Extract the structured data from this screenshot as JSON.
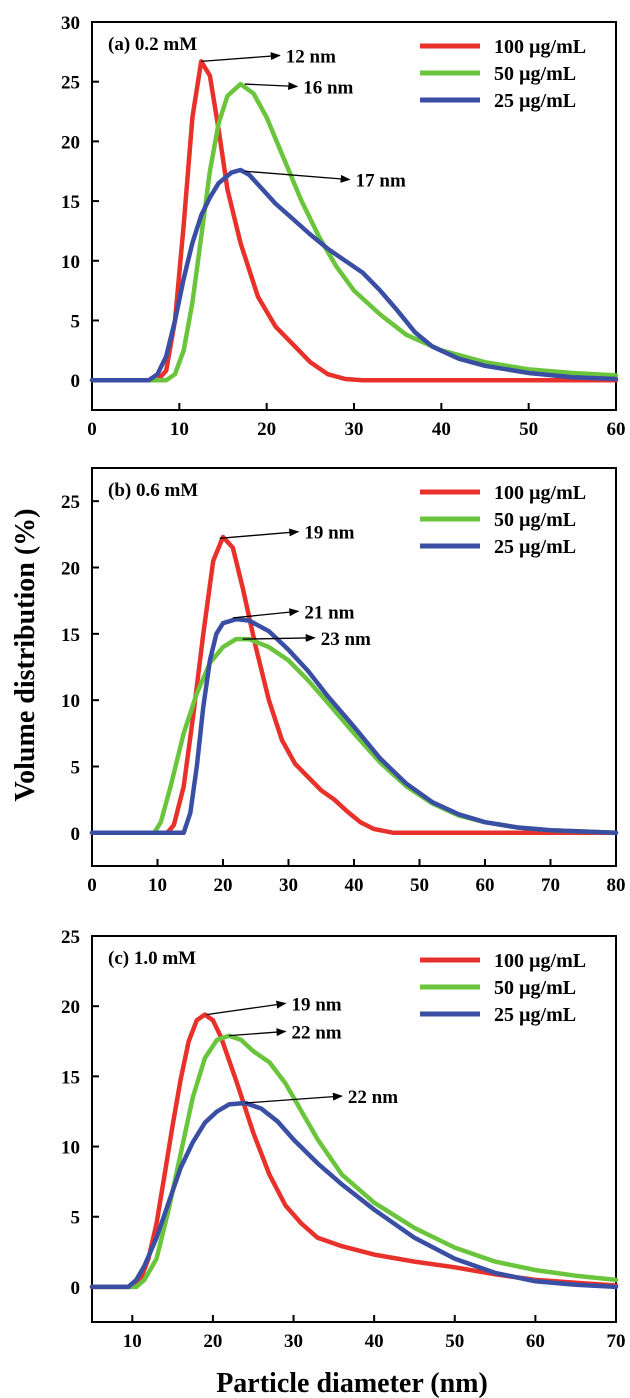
{
  "figure": {
    "ylabel": "Volume distribution (%)",
    "xlabel": "Particle diameter (nm)"
  },
  "colors": {
    "s100": "#e8312b",
    "s50": "#6ac53c",
    "s25": "#3a4ea3"
  },
  "chart_data": [
    {
      "type": "line",
      "panel_label": "(a) 0.2 mM",
      "xlim": [
        0,
        60
      ],
      "ylim": [
        -2.5,
        30
      ],
      "xticks": [
        0,
        10,
        20,
        30,
        40,
        50,
        60
      ],
      "yticks": [
        0,
        5,
        10,
        15,
        20,
        25,
        30
      ],
      "legend_position": "top-right",
      "series": [
        {
          "name": "100 µg/mL",
          "color": "#e8312b",
          "points": [
            [
              0,
              0
            ],
            [
              7.5,
              0
            ],
            [
              8.5,
              0.8
            ],
            [
              9.5,
              5
            ],
            [
              10.5,
              13
            ],
            [
              11.5,
              22
            ],
            [
              12.5,
              26.7
            ],
            [
              13.5,
              25.5
            ],
            [
              14.5,
              21
            ],
            [
              15.5,
              16
            ],
            [
              17,
              11.5
            ],
            [
              19,
              7
            ],
            [
              21,
              4.5
            ],
            [
              23,
              3
            ],
            [
              25,
              1.5
            ],
            [
              27,
              0.5
            ],
            [
              29,
              0.1
            ],
            [
              31,
              0
            ],
            [
              60,
              0
            ]
          ]
        },
        {
          "name": "50 µg/mL",
          "color": "#6ac53c",
          "points": [
            [
              0,
              0
            ],
            [
              8.5,
              0
            ],
            [
              9.5,
              0.5
            ],
            [
              10.5,
              2.5
            ],
            [
              11.5,
              6.5
            ],
            [
              12.5,
              12
            ],
            [
              13.5,
              17.5
            ],
            [
              14.5,
              21.5
            ],
            [
              15.5,
              23.8
            ],
            [
              17,
              24.8
            ],
            [
              18.5,
              24
            ],
            [
              20,
              22
            ],
            [
              22,
              18.5
            ],
            [
              24,
              15
            ],
            [
              26,
              12
            ],
            [
              28,
              9.5
            ],
            [
              30,
              7.5
            ],
            [
              33,
              5.5
            ],
            [
              36,
              3.8
            ],
            [
              40,
              2.5
            ],
            [
              45,
              1.5
            ],
            [
              50,
              0.9
            ],
            [
              55,
              0.6
            ],
            [
              60,
              0.4
            ]
          ]
        },
        {
          "name": "25 µg/mL",
          "color": "#3a4ea3",
          "points": [
            [
              0,
              0
            ],
            [
              6.5,
              0
            ],
            [
              7.5,
              0.5
            ],
            [
              8.5,
              2
            ],
            [
              9.5,
              5
            ],
            [
              10.5,
              8.5
            ],
            [
              11.5,
              11.5
            ],
            [
              12.5,
              13.8
            ],
            [
              13.5,
              15.3
            ],
            [
              14.5,
              16.5
            ],
            [
              16,
              17.4
            ],
            [
              17,
              17.6
            ],
            [
              18,
              17.2
            ],
            [
              19.5,
              16
            ],
            [
              21,
              14.8
            ],
            [
              23,
              13.5
            ],
            [
              25,
              12.2
            ],
            [
              27,
              11
            ],
            [
              29,
              10
            ],
            [
              31,
              9
            ],
            [
              33,
              7.5
            ],
            [
              35,
              5.8
            ],
            [
              37,
              4
            ],
            [
              39,
              2.8
            ],
            [
              42,
              1.8
            ],
            [
              45,
              1.2
            ],
            [
              50,
              0.6
            ],
            [
              55,
              0.25
            ],
            [
              60,
              0.1
            ]
          ]
        }
      ],
      "annotations": [
        {
          "text": "12 nm",
          "x": 12.5,
          "y": 26.7,
          "tx": 21.5,
          "ty": 27.2
        },
        {
          "text": "16 nm",
          "x": 17.5,
          "y": 24.8,
          "tx": 23.5,
          "ty": 24.6
        },
        {
          "text": "17 nm",
          "x": 17.5,
          "y": 17.5,
          "tx": 29.5,
          "ty": 16.8
        }
      ]
    },
    {
      "type": "line",
      "panel_label": "(b) 0.6 mM",
      "xlim": [
        0,
        80
      ],
      "ylim": [
        -2.5,
        27.5
      ],
      "xticks": [
        0,
        10,
        20,
        30,
        40,
        50,
        60,
        70,
        80
      ],
      "yticks": [
        0,
        5,
        10,
        15,
        20,
        25
      ],
      "legend_position": "top-right",
      "series": [
        {
          "name": "100 µg/mL",
          "color": "#e8312b",
          "points": [
            [
              0,
              0
            ],
            [
              11.5,
              0
            ],
            [
              12.5,
              0.6
            ],
            [
              14,
              3.5
            ],
            [
              15.5,
              9
            ],
            [
              17,
              15
            ],
            [
              18.5,
              20.5
            ],
            [
              20,
              22.3
            ],
            [
              21.5,
              21.5
            ],
            [
              23,
              18.5
            ],
            [
              25,
              14
            ],
            [
              27,
              10
            ],
            [
              29,
              7
            ],
            [
              31,
              5.2
            ],
            [
              33,
              4.2
            ],
            [
              35,
              3.2
            ],
            [
              37,
              2.5
            ],
            [
              39,
              1.6
            ],
            [
              41,
              0.8
            ],
            [
              43,
              0.3
            ],
            [
              46,
              0
            ],
            [
              80,
              0
            ]
          ]
        },
        {
          "name": "50 µg/mL",
          "color": "#6ac53c",
          "points": [
            [
              0,
              0
            ],
            [
              9.5,
              0
            ],
            [
              10.5,
              0.8
            ],
            [
              12,
              3.5
            ],
            [
              14,
              7.5
            ],
            [
              16,
              10.5
            ],
            [
              18,
              12.8
            ],
            [
              20,
              14
            ],
            [
              22,
              14.6
            ],
            [
              24,
              14.6
            ],
            [
              27,
              14
            ],
            [
              30,
              13
            ],
            [
              33,
              11.5
            ],
            [
              36,
              9.8
            ],
            [
              40,
              7.5
            ],
            [
              44,
              5.3
            ],
            [
              48,
              3.5
            ],
            [
              52,
              2.2
            ],
            [
              56,
              1.3
            ],
            [
              60,
              0.8
            ],
            [
              65,
              0.4
            ],
            [
              70,
              0.2
            ],
            [
              80,
              0
            ]
          ]
        },
        {
          "name": "25 µg/mL",
          "color": "#3a4ea3",
          "points": [
            [
              0,
              0
            ],
            [
              14,
              0
            ],
            [
              15,
              1.5
            ],
            [
              16,
              5
            ],
            [
              17,
              9.5
            ],
            [
              18,
              13
            ],
            [
              19,
              15
            ],
            [
              20,
              15.8
            ],
            [
              22,
              16.1
            ],
            [
              24,
              16
            ],
            [
              27,
              15.2
            ],
            [
              30,
              13.8
            ],
            [
              33,
              12.2
            ],
            [
              36,
              10.3
            ],
            [
              40,
              8
            ],
            [
              44,
              5.6
            ],
            [
              48,
              3.7
            ],
            [
              52,
              2.3
            ],
            [
              56,
              1.4
            ],
            [
              60,
              0.8
            ],
            [
              65,
              0.4
            ],
            [
              70,
              0.2
            ],
            [
              80,
              0
            ]
          ]
        }
      ],
      "annotations": [
        {
          "text": "19 nm",
          "x": 19.5,
          "y": 22.2,
          "tx": 31.5,
          "ty": 22.7
        },
        {
          "text": "21 nm",
          "x": 21.5,
          "y": 16.2,
          "tx": 31.5,
          "ty": 16.7
        },
        {
          "text": "23 nm",
          "x": 23,
          "y": 14.6,
          "tx": 34,
          "ty": 14.7
        }
      ]
    },
    {
      "type": "line",
      "panel_label": "(c) 1.0 mM",
      "xlim": [
        5,
        70
      ],
      "ylim": [
        -2.5,
        25
      ],
      "xticks": [
        10,
        20,
        30,
        40,
        50,
        60,
        70
      ],
      "yticks": [
        0,
        5,
        10,
        15,
        20,
        25
      ],
      "legend_position": "top-right",
      "series": [
        {
          "name": "100 µg/mL",
          "color": "#e8312b",
          "points": [
            [
              5,
              0
            ],
            [
              10,
              0
            ],
            [
              11,
              0.5
            ],
            [
              12,
              2
            ],
            [
              13,
              4.5
            ],
            [
              14,
              8
            ],
            [
              15,
              11.5
            ],
            [
              16,
              14.8
            ],
            [
              17,
              17.5
            ],
            [
              18,
              19
            ],
            [
              19,
              19.4
            ],
            [
              20,
              19
            ],
            [
              21,
              17.8
            ],
            [
              23,
              14.5
            ],
            [
              25,
              11
            ],
            [
              27,
              8
            ],
            [
              29,
              5.8
            ],
            [
              31,
              4.5
            ],
            [
              33,
              3.5
            ],
            [
              36,
              2.9
            ],
            [
              40,
              2.3
            ],
            [
              45,
              1.8
            ],
            [
              50,
              1.4
            ],
            [
              55,
              0.9
            ],
            [
              60,
              0.5
            ],
            [
              65,
              0.3
            ],
            [
              70,
              0.1
            ]
          ]
        },
        {
          "name": "50 µg/mL",
          "color": "#6ac53c",
          "points": [
            [
              5,
              0
            ],
            [
              10.5,
              0
            ],
            [
              11.5,
              0.5
            ],
            [
              13,
              2
            ],
            [
              14.5,
              5.5
            ],
            [
              16,
              9.5
            ],
            [
              17.5,
              13.5
            ],
            [
              19,
              16.3
            ],
            [
              20.5,
              17.6
            ],
            [
              22,
              17.9
            ],
            [
              23.5,
              17.6
            ],
            [
              25,
              16.8
            ],
            [
              27,
              16
            ],
            [
              29,
              14.5
            ],
            [
              31,
              12.5
            ],
            [
              33,
              10.5
            ],
            [
              36,
              8
            ],
            [
              40,
              6
            ],
            [
              45,
              4.2
            ],
            [
              50,
              2.8
            ],
            [
              55,
              1.8
            ],
            [
              60,
              1.2
            ],
            [
              65,
              0.8
            ],
            [
              70,
              0.5
            ]
          ]
        },
        {
          "name": "25 µg/mL",
          "color": "#3a4ea3",
          "points": [
            [
              5,
              0
            ],
            [
              9.5,
              0
            ],
            [
              10.5,
              0.5
            ],
            [
              11.5,
              1.5
            ],
            [
              13,
              3.5
            ],
            [
              14.5,
              6
            ],
            [
              16,
              8.5
            ],
            [
              17.5,
              10.3
            ],
            [
              19,
              11.7
            ],
            [
              20.5,
              12.5
            ],
            [
              22,
              13
            ],
            [
              24,
              13.1
            ],
            [
              26,
              12.7
            ],
            [
              28,
              11.8
            ],
            [
              30,
              10.5
            ],
            [
              33,
              8.8
            ],
            [
              36,
              7.3
            ],
            [
              40,
              5.5
            ],
            [
              45,
              3.5
            ],
            [
              50,
              2
            ],
            [
              55,
              1
            ],
            [
              60,
              0.4
            ],
            [
              65,
              0.15
            ],
            [
              70,
              0
            ]
          ]
        }
      ],
      "annotations": [
        {
          "text": "19 nm",
          "x": 19.2,
          "y": 19.4,
          "tx": 29,
          "ty": 20.2
        },
        {
          "text": "22 nm",
          "x": 22,
          "y": 17.9,
          "tx": 29,
          "ty": 18.2
        },
        {
          "text": "22 nm",
          "x": 24,
          "y": 13.1,
          "tx": 36,
          "ty": 13.6
        }
      ]
    }
  ]
}
